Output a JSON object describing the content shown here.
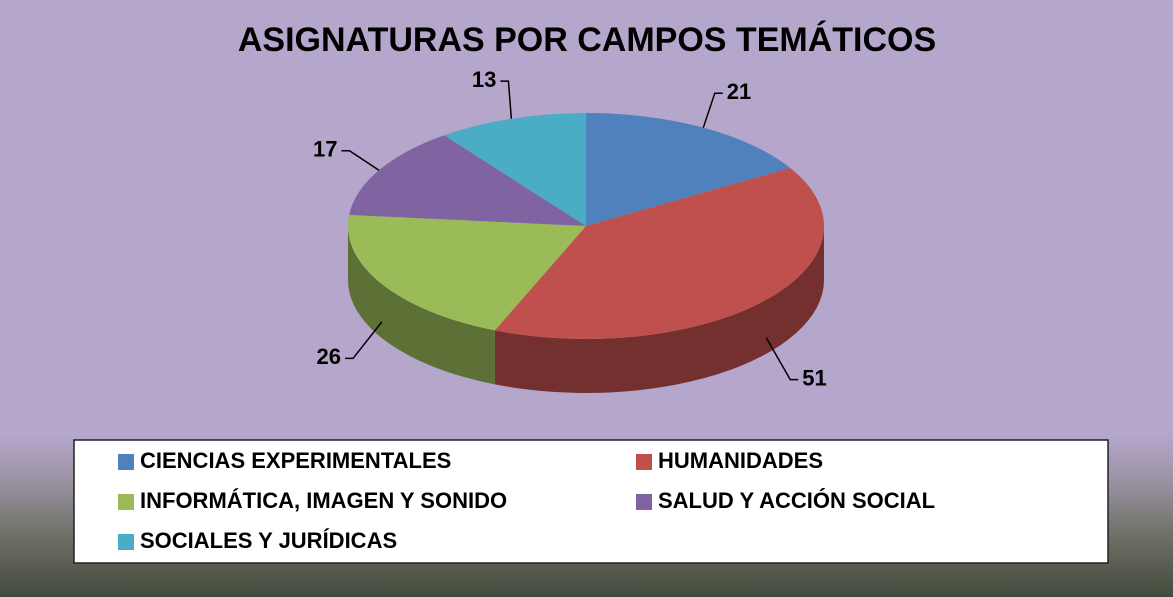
{
  "chart_data": {
    "type": "pie3d",
    "title": "ASIGNATURAS POR CAMPOS TEMÁTICOS",
    "categories": [
      "CIENCIAS EXPERIMENTALES",
      "HUMANIDADES",
      "INFORMÁTICA, IMAGEN Y SONIDO",
      "SALUD Y ACCIÓN SOCIAL",
      "SOCIALES Y JURÍDICAS"
    ],
    "values": [
      21,
      51,
      26,
      17,
      13
    ],
    "colors": [
      "#4f81bd",
      "#c0504d",
      "#9bbb59",
      "#8064a2",
      "#4bacc6"
    ]
  }
}
